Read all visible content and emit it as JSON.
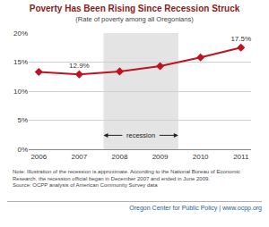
{
  "chart_data": {
    "type": "line",
    "title": "Poverty Has Been Rising Since Recession Struck",
    "subtitle": "(Rate of poverty among all Oregonians)",
    "x": [
      2006,
      2007,
      2008,
      2009,
      2010,
      2011
    ],
    "values": [
      13.3,
      12.9,
      13.4,
      14.3,
      15.8,
      17.5
    ],
    "color": "#c1121f",
    "marker": "diamond",
    "data_labels": true,
    "value_labels": [
      null,
      "12.9%",
      null,
      null,
      null,
      "17.5%"
    ],
    "xlim": [
      2005.75,
      2011.25
    ],
    "xticks": [
      2006,
      2007,
      2008,
      2009,
      2010,
      2011
    ],
    "ylim": [
      0,
      20
    ],
    "yticks": [
      {
        "value": 0,
        "label": "0%"
      },
      {
        "value": 5,
        "label": "5%"
      },
      {
        "value": 10,
        "label": "10%"
      },
      {
        "value": 15,
        "label": "15%"
      },
      {
        "value": 20,
        "label": "20%"
      }
    ],
    "grid": true,
    "recession": {
      "start": 2007.6,
      "end": 2009.45,
      "label": "recession"
    },
    "notes": [
      "Note: Illustration of the recession is approximate. According to the National Bureau of Economic Research, the recession official began in December 2007 and ended in June 2009.",
      "Source: OCPP analysis of American Community Survey data"
    ],
    "footer": "Oregon Center for Public Policy | www.ocpp.org"
  }
}
